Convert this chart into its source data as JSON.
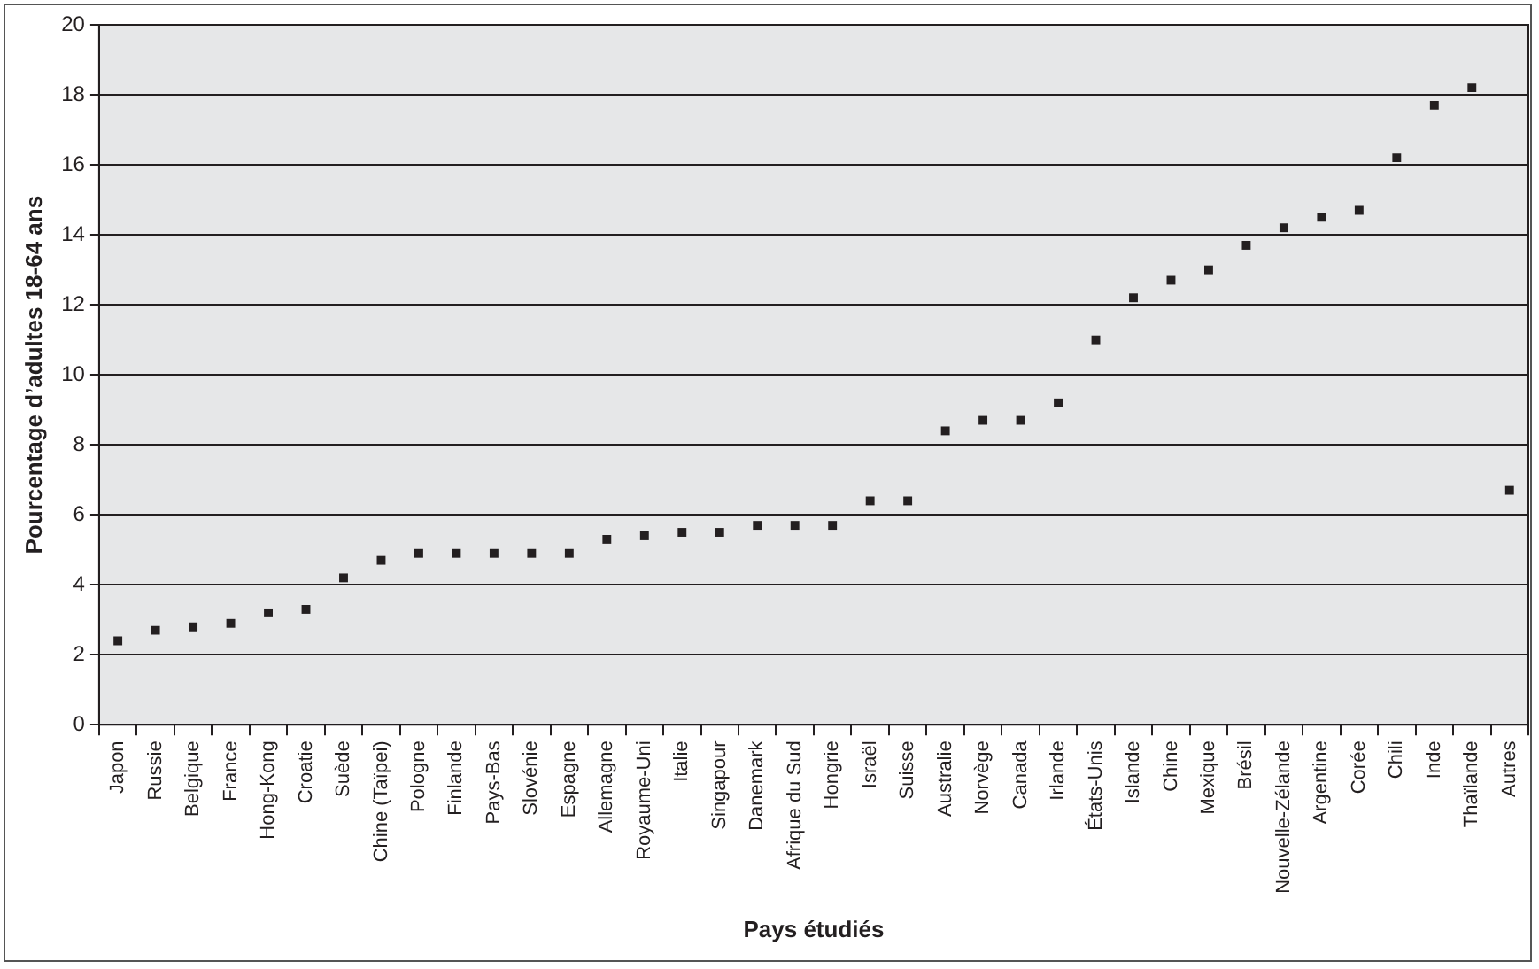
{
  "chart_data": {
    "type": "scatter",
    "xlabel": "Pays étudiés",
    "ylabel": "Pourcentage d’adultes 18-64 ans",
    "categories": [
      "Japon",
      "Russie",
      "Belgique",
      "France",
      "Hong-Kong",
      "Croatie",
      "Suède",
      "Chine (Taïpei)",
      "Pologne",
      "Finlande",
      "Pays-Bas",
      "Slovénie",
      "Espagne",
      "Allemagne",
      "Royaume-Uni",
      "Italie",
      "Singapour",
      "Danemark",
      "Afrique du Sud",
      "Hongrie",
      "Israël",
      "Suisse",
      "Australie",
      "Norvège",
      "Canada",
      "Irlande",
      "États-Unis",
      "Islande",
      "Chine",
      "Mexique",
      "Brésil",
      "Nouvelle-Zélande",
      "Argentine",
      "Corée",
      "Chili",
      "Inde",
      "Thaïlande",
      "Autres"
    ],
    "series": [
      {
        "color": "#231f20",
        "values": [
          2.4,
          2.7,
          2.8,
          2.9,
          3.2,
          3.3,
          4.2,
          4.7,
          4.9,
          4.9,
          4.9,
          4.9,
          4.9,
          5.3,
          5.4,
          5.5,
          5.5,
          5.7,
          5.7,
          5.7,
          6.4,
          6.4,
          8.4,
          8.7,
          8.7,
          9.2,
          11.0,
          12.2,
          12.7,
          13.0,
          13.7,
          14.2,
          14.5,
          14.7,
          16.2,
          17.7,
          18.2,
          6.7
        ]
      }
    ],
    "ylim": [
      0,
      20
    ],
    "yticks": [
      0,
      2,
      4,
      6,
      8,
      10,
      12,
      14,
      16,
      18,
      20
    ],
    "grid": "y",
    "legend": false,
    "marker": "square"
  }
}
